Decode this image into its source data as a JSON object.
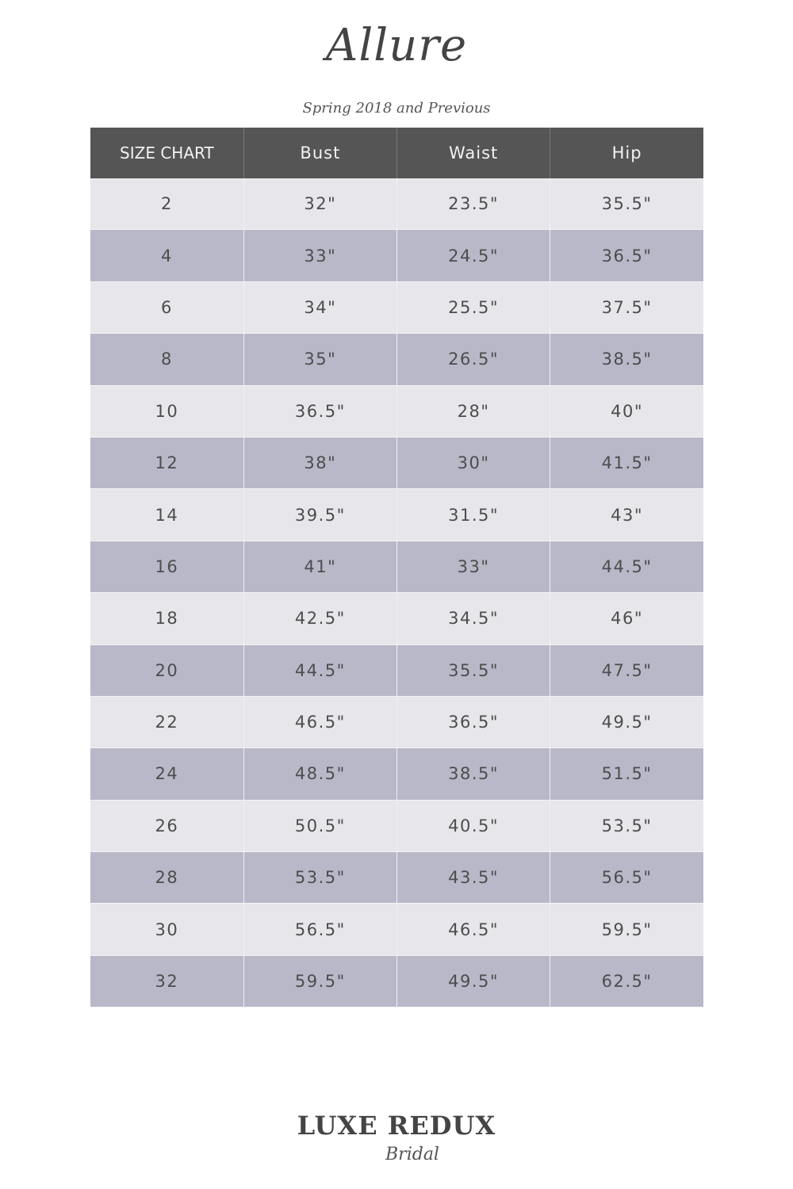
{
  "brand": "Allure",
  "subtitle": "Spring 2018 and Previous",
  "table": {
    "headers": [
      "SIZE CHART",
      "Bust",
      "Waist",
      "Hip"
    ],
    "rows": [
      [
        "2",
        "32\"",
        "23.5\"",
        "35.5\""
      ],
      [
        "4",
        "33\"",
        "24.5\"",
        "36.5\""
      ],
      [
        "6",
        "34\"",
        "25.5\"",
        "37.5\""
      ],
      [
        "8",
        "35\"",
        "26.5\"",
        "38.5\""
      ],
      [
        "10",
        "36.5\"",
        "28\"",
        "40\""
      ],
      [
        "12",
        "38\"",
        "30\"",
        "41.5\""
      ],
      [
        "14",
        "39.5\"",
        "31.5\"",
        "43\""
      ],
      [
        "16",
        "41\"",
        "33\"",
        "44.5\""
      ],
      [
        "18",
        "42.5\"",
        "34.5\"",
        "46\""
      ],
      [
        "20",
        "44.5\"",
        "35.5\"",
        "47.5\""
      ],
      [
        "22",
        "46.5\"",
        "36.5\"",
        "49.5\""
      ],
      [
        "24",
        "48.5\"",
        "38.5\"",
        "51.5\""
      ],
      [
        "26",
        "50.5\"",
        "40.5\"",
        "53.5\""
      ],
      [
        "28",
        "53.5\"",
        "43.5\"",
        "56.5\""
      ],
      [
        "30",
        "56.5\"",
        "46.5\"",
        "59.5\""
      ],
      [
        "32",
        "59.5\"",
        "49.5\"",
        "62.5\""
      ]
    ]
  },
  "colors": {
    "header_bg": "#555555",
    "row_light": "#e6e6eb",
    "row_dark": "#b8b8c9"
  },
  "footer": {
    "logo_line1": "LUXE REDUX",
    "logo_line2": "Bridal"
  }
}
